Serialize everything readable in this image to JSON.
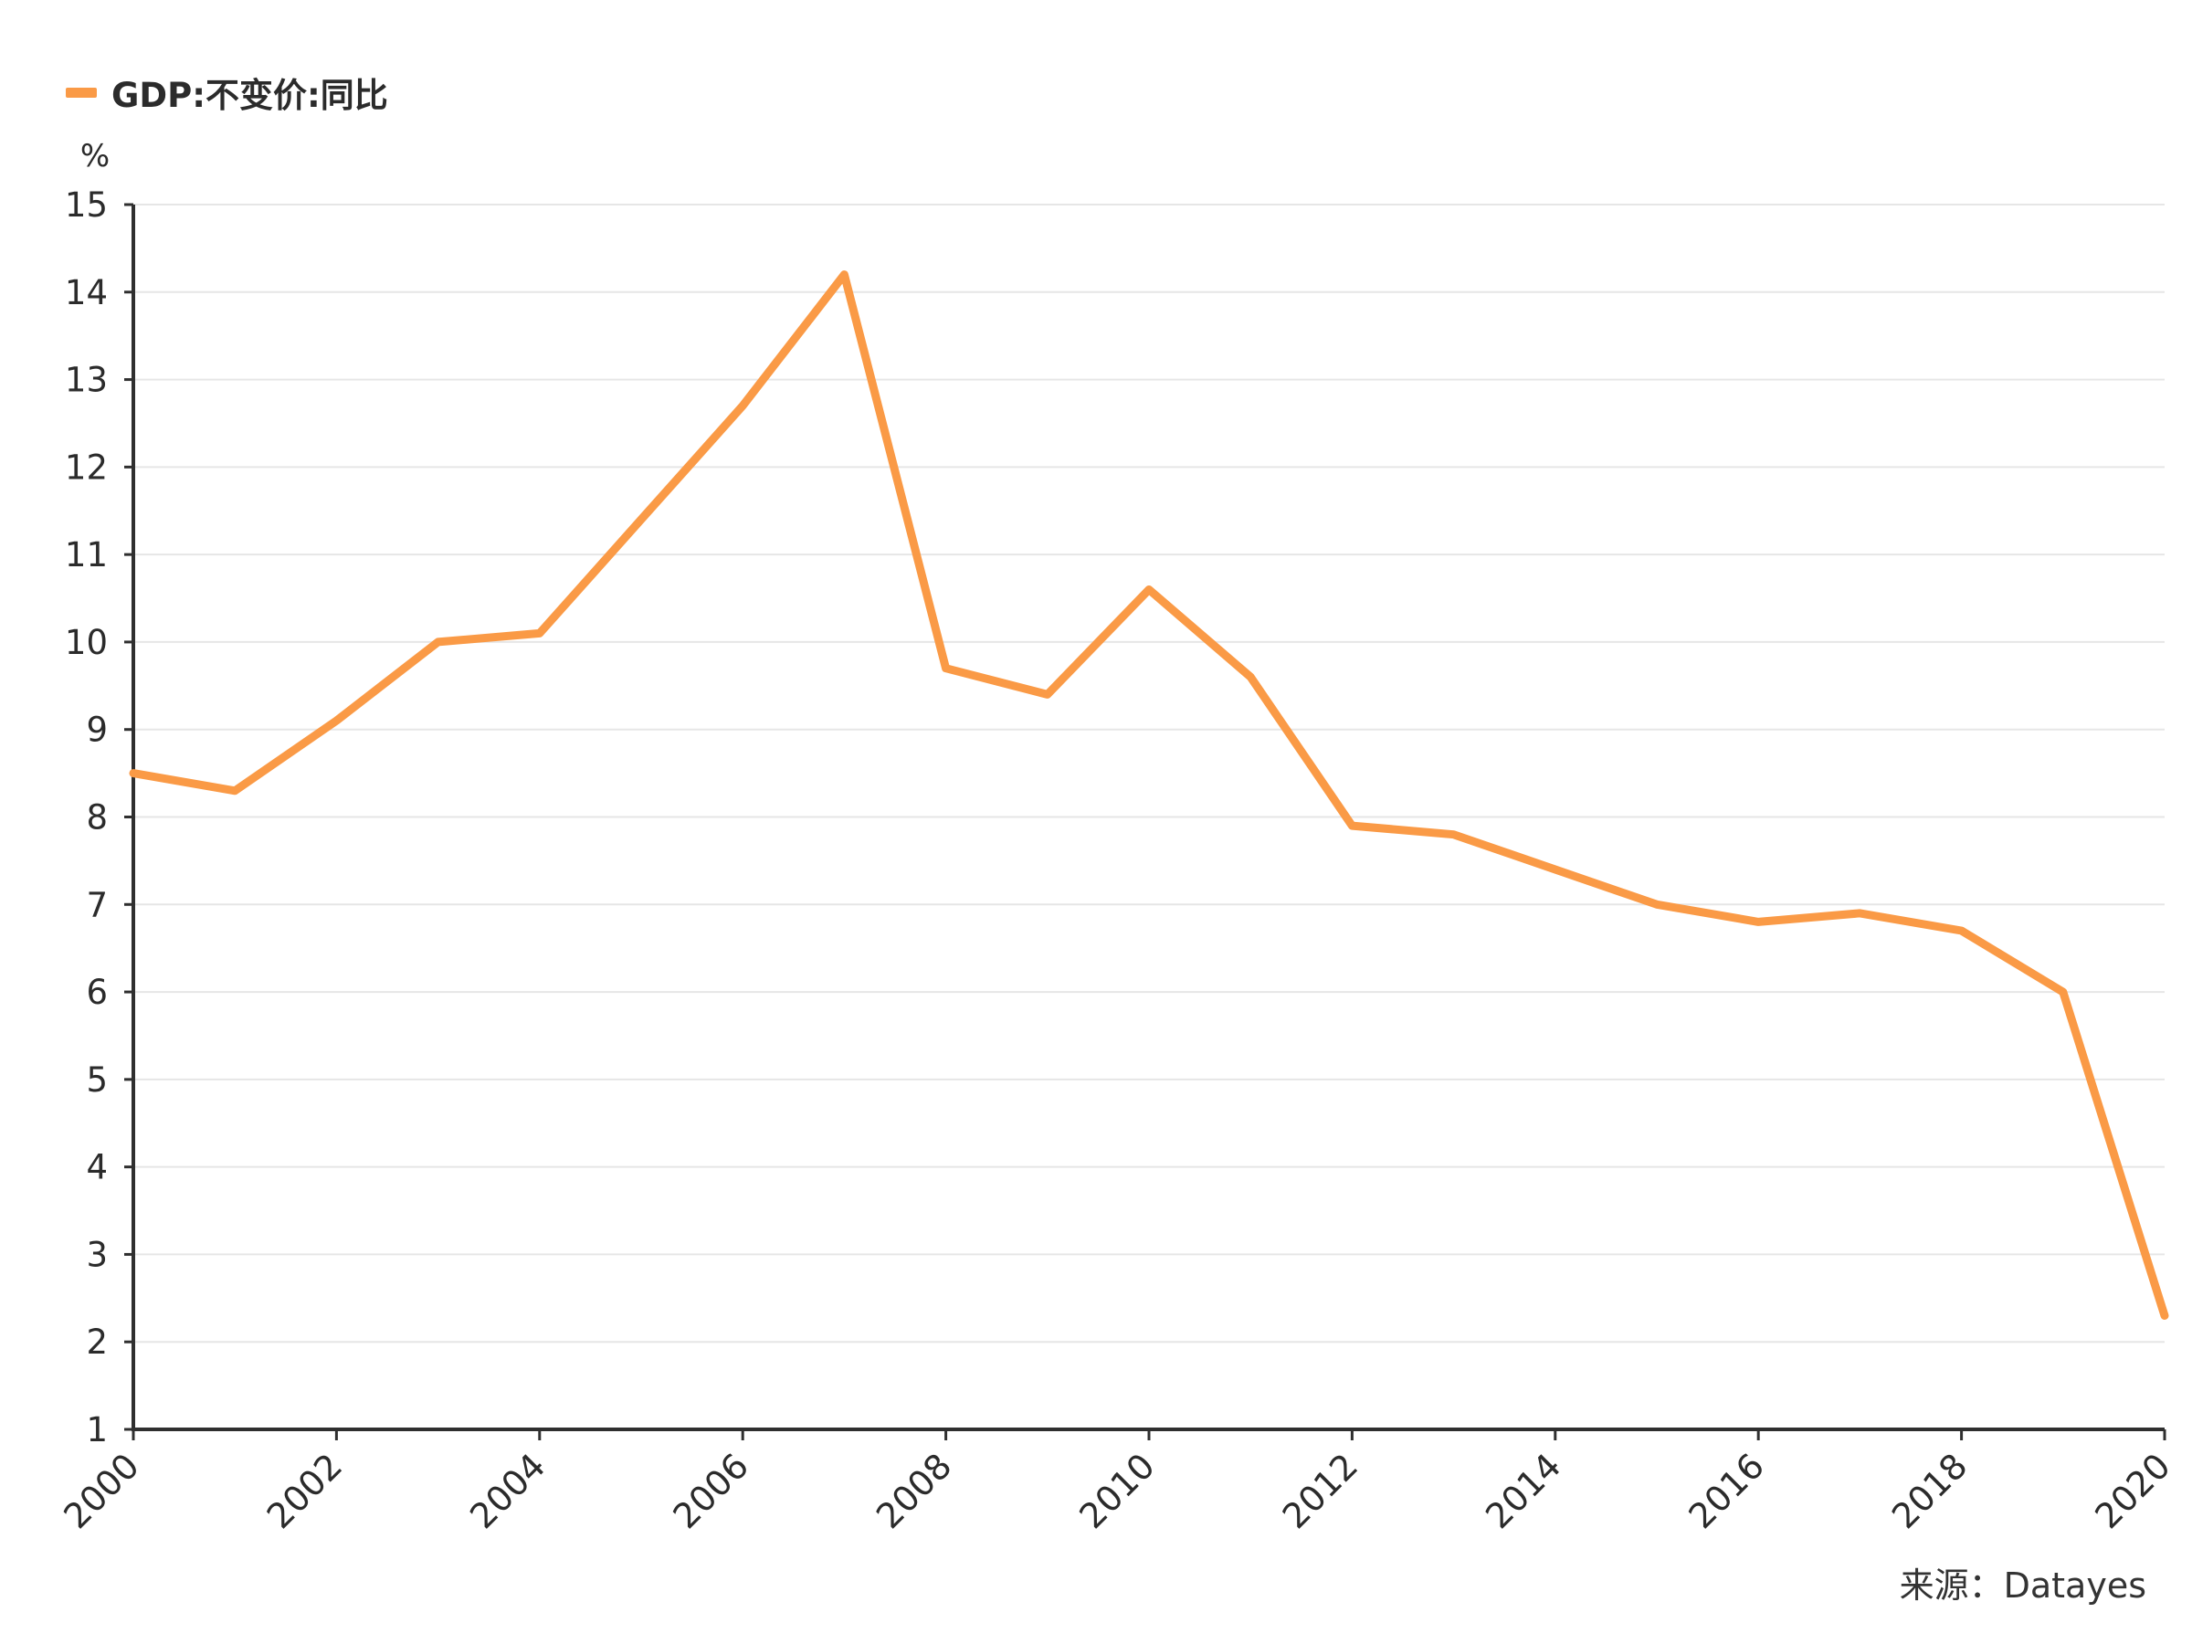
{
  "colors": {
    "series": "#FA9A46",
    "axis": "#2f2f2f",
    "grid": "#e6e6e6"
  },
  "legend": {
    "label": "GDP:不变价:同比"
  },
  "source_text": "来源：Datayes",
  "chart_data": {
    "type": "line",
    "title": "",
    "ylabel": "%",
    "ylim": [
      1,
      15
    ],
    "yticks": [
      1,
      2,
      3,
      4,
      5,
      6,
      7,
      8,
      9,
      10,
      11,
      12,
      13,
      14,
      15
    ],
    "xlim": [
      2000,
      2020
    ],
    "xticks": [
      2000,
      2002,
      2004,
      2006,
      2008,
      2010,
      2012,
      2014,
      2016,
      2018,
      2020
    ],
    "grid": true,
    "legend_position": "top-left",
    "series": [
      {
        "name": "GDP:不变价:同比",
        "x": [
          2000,
          2001,
          2002,
          2003,
          2004,
          2005,
          2006,
          2007,
          2008,
          2009,
          2010,
          2011,
          2012,
          2013,
          2014,
          2015,
          2016,
          2017,
          2018,
          2019,
          2020
        ],
        "values": [
          8.5,
          8.3,
          9.1,
          10.0,
          10.1,
          11.4,
          12.7,
          14.2,
          9.7,
          9.4,
          10.6,
          9.6,
          7.9,
          7.8,
          7.4,
          7.0,
          6.8,
          6.9,
          6.7,
          6.0,
          2.3
        ]
      }
    ]
  }
}
